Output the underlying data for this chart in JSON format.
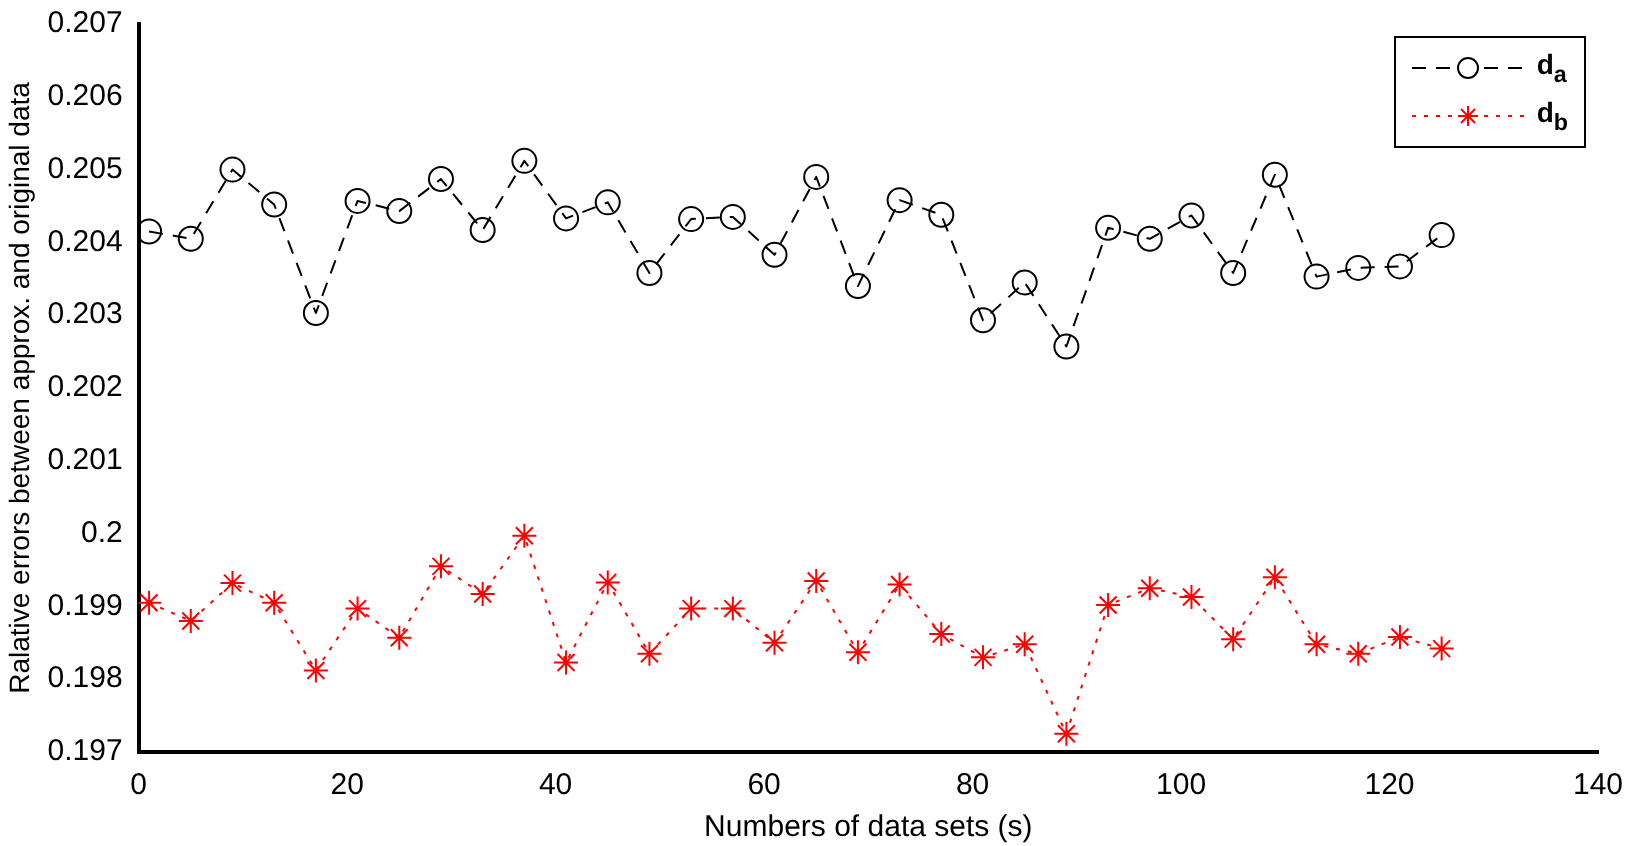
{
  "chart_data": {
    "type": "line",
    "xlabel": "Numbers of data sets (s)",
    "ylabel": "Ralative errors between approx. and original data",
    "x": [
      1,
      5,
      9,
      13,
      17,
      21,
      25,
      29,
      33,
      37,
      41,
      45,
      49,
      53,
      57,
      61,
      65,
      69,
      73,
      77,
      81,
      85,
      89,
      93,
      97,
      101,
      105,
      109,
      113,
      117,
      121,
      125
    ],
    "series": [
      {
        "name": "d$_{a}$",
        "color": "#000000",
        "marker": "circle",
        "line_style": "dashed",
        "values": [
          0.20415,
          0.20405,
          0.205,
          0.20452,
          0.20303,
          0.20457,
          0.20443,
          0.20487,
          0.20417,
          0.20512,
          0.20433,
          0.20455,
          0.20358,
          0.20432,
          0.20435,
          0.20383,
          0.2049,
          0.2034,
          0.20458,
          0.20438,
          0.20293,
          0.20345,
          0.20257,
          0.2042,
          0.20405,
          0.20437,
          0.20358,
          0.20493,
          0.20353,
          0.20365,
          0.20367,
          0.2041
        ]
      },
      {
        "name": "d$_{b}$",
        "color": "#ff0000",
        "marker": "cross",
        "line_style": "dotted",
        "values": [
          0.19905,
          0.1988,
          0.19932,
          0.19905,
          0.19812,
          0.19897,
          0.19857,
          0.19955,
          0.19917,
          0.19997,
          0.19823,
          0.19933,
          0.19835,
          0.19897,
          0.19897,
          0.1985,
          0.19935,
          0.19837,
          0.1993,
          0.19862,
          0.1983,
          0.19848,
          0.19725,
          0.19902,
          0.19925,
          0.19913,
          0.19855,
          0.1994,
          0.19848,
          0.19835,
          0.19858,
          0.19842
        ]
      }
    ],
    "xlim": [
      0,
      140
    ],
    "xticks": [
      0,
      20,
      40,
      60,
      80,
      100,
      120,
      140
    ],
    "ylim": [
      0.197,
      0.207
    ],
    "yticks": [
      0.197,
      0.198,
      0.199,
      0.2,
      0.201,
      0.202,
      0.203,
      0.204,
      0.205,
      0.206,
      0.207
    ],
    "grid": false,
    "legend": "top right"
  }
}
